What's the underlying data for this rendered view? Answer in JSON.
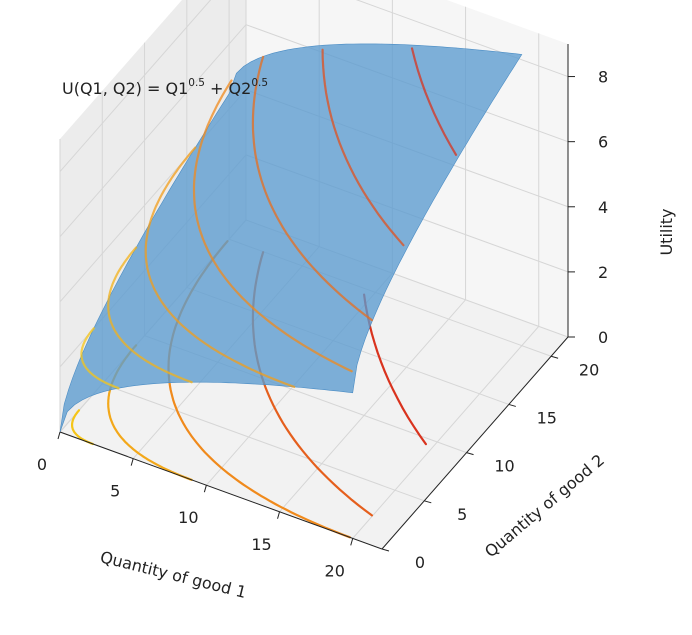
{
  "chart_data": {
    "type": "surface",
    "title": "",
    "annotation": {
      "prefix": "U(Q1, Q2) = Q1",
      "exp1": "0.5",
      "middle": " + Q2",
      "exp2": "0.5"
    },
    "function": "U = Q1^0.5 + Q2^0.5",
    "xlabel": "Quantity of good 1",
    "ylabel": "Quantity of good 2",
    "zlabel": "Utility",
    "xlim": [
      0,
      22
    ],
    "ylim": [
      0,
      22
    ],
    "zlim": [
      0,
      9
    ],
    "xticks": [
      "0",
      "5",
      "10",
      "15",
      "20"
    ],
    "yticks": [
      "0",
      "5",
      "10",
      "15",
      "20"
    ],
    "zticks": [
      "0",
      "2",
      "4",
      "6",
      "8"
    ],
    "contour_levels": [
      2,
      3,
      4,
      5,
      6,
      7,
      8
    ],
    "contours_on_floor": [
      1.5,
      3,
      4.5,
      6,
      7.5
    ],
    "grid": true,
    "colors": {
      "surface": "#5b9bd0",
      "pane": "#f2f2f2",
      "grid": "#d6d6d6",
      "contour_low": "#f5c518",
      "contour_mid": "#f08a1c",
      "contour_high": "#d9331e"
    }
  }
}
